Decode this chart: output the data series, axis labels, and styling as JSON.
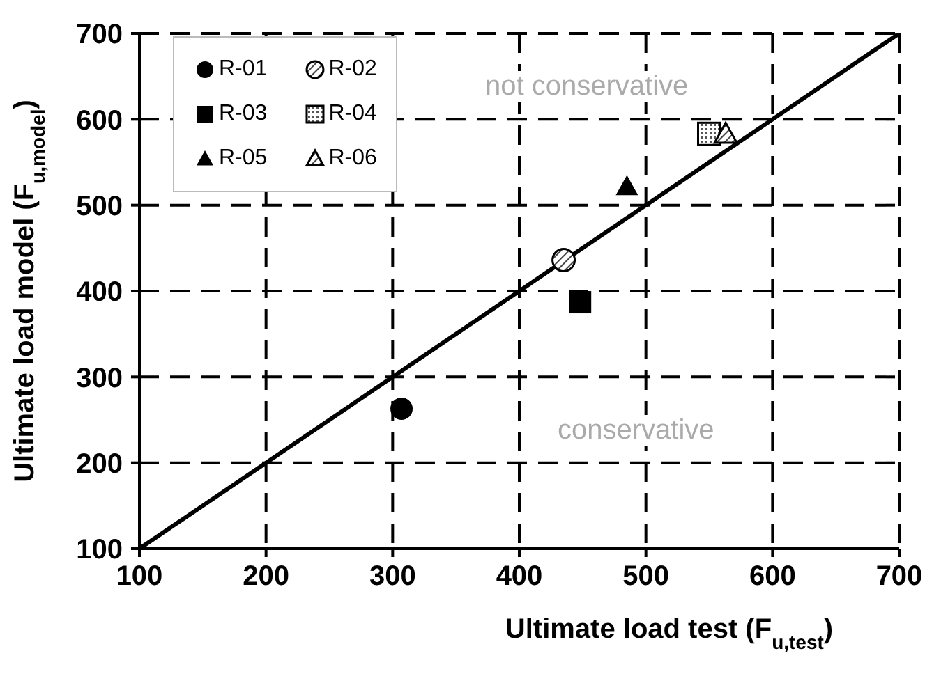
{
  "chart_data": {
    "type": "scatter",
    "xlabel": "Ultimate load test (F$_{u,test}$)",
    "ylabel": "Ultimate load model (F$_{u,model}$)",
    "xlim": [
      100,
      700
    ],
    "xticks": [
      100,
      200,
      300,
      400,
      500,
      600,
      700
    ],
    "ylim": [
      100,
      700
    ],
    "yticks": [
      100,
      200,
      300,
      400,
      500,
      600,
      700
    ],
    "grid": true,
    "legend": "top left",
    "annotations": [
      "not conservative",
      "conservative"
    ],
    "series": [
      {
        "name": "R-01",
        "color": "#000000",
        "marker": "circle",
        "x": [
          307
        ],
        "values": [
          263
        ]
      },
      {
        "name": "R-02",
        "color": "#000000",
        "marker": "circle",
        "x": [
          435
        ],
        "values": [
          436
        ]
      },
      {
        "name": "R-03",
        "color": "#000000",
        "marker": "square",
        "x": [
          448
        ],
        "values": [
          387
        ]
      },
      {
        "name": "R-04",
        "color": "#000000",
        "marker": "square",
        "x": [
          550
        ],
        "values": [
          583
        ]
      },
      {
        "name": "R-05",
        "color": "#000000",
        "marker": "triangle",
        "x": [
          485
        ],
        "values": [
          522
        ]
      },
      {
        "name": "R-06",
        "color": "#000000",
        "marker": "triangle",
        "x": [
          563
        ],
        "values": [
          583
        ]
      },
      {
        "type": "line",
        "color": "#000000",
        "marker": "none",
        "x": [
          100,
          700
        ],
        "values": [
          100,
          700
        ]
      }
    ]
  }
}
